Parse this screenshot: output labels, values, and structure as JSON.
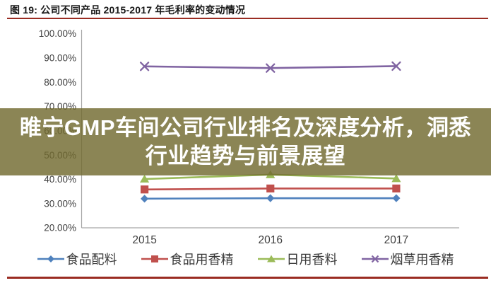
{
  "figure": {
    "title": "图 19: 公司不同产品 2015-2017 年毛利率的变动情况"
  },
  "watermark": {
    "line1": "睢宁GMP车间公司行业排名及深度分析，洞悉",
    "line2": "行业趋势与前景展望"
  },
  "colors": {
    "title_rule": "#9a2c22",
    "axis_line": "#a6a6a6",
    "tick_text": "#3f3f3f",
    "watermark_bg": "olive-khaki semi-transparent",
    "watermark_text": "#ffffff"
  },
  "chart_data": {
    "type": "line",
    "title": "公司不同产品 2015-2017 年毛利率的变动情况",
    "categories": [
      "2015",
      "2016",
      "2017"
    ],
    "series": [
      {
        "name": "食品配料",
        "color": "#4F81BD",
        "marker": "diamond",
        "values": [
          32.0,
          32.2,
          32.2
        ]
      },
      {
        "name": "食品用香精",
        "color": "#C0504D",
        "marker": "square",
        "values": [
          35.8,
          36.2,
          36.2
        ]
      },
      {
        "name": "日用香料",
        "color": "#9BBB59",
        "marker": "triangle",
        "values": [
          40.1,
          41.9,
          40.3
        ]
      },
      {
        "name": "烟草用香精",
        "color": "#8064A2",
        "marker": "x",
        "values": [
          86.5,
          85.8,
          86.6
        ]
      }
    ],
    "xlabel": "",
    "ylabel": "",
    "ylim": [
      20,
      100
    ],
    "y_tick_labels": [
      "100.00%",
      "90.00%",
      "80.00%",
      "70.00%",
      "60.00%",
      "50.00%",
      "40.00%",
      "30.00%",
      "20.00%"
    ],
    "grid": false,
    "legend_position": "bottom"
  }
}
